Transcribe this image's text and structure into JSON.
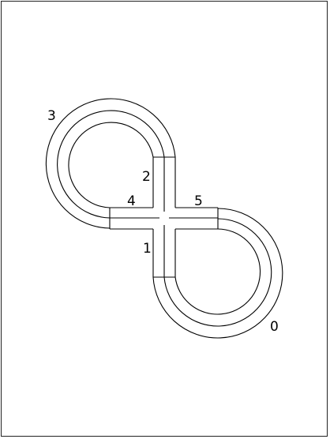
{
  "diagram": {
    "pieces": [
      {
        "id": "piece-0",
        "label": "0"
      },
      {
        "id": "piece-1",
        "label": "1"
      },
      {
        "id": "piece-2",
        "label": "2"
      },
      {
        "id": "piece-3",
        "label": "3"
      },
      {
        "id": "piece-4",
        "label": "4"
      },
      {
        "id": "piece-5",
        "label": "5"
      }
    ],
    "colors": {
      "background": "#ffffff",
      "stroke": "#000000",
      "frame": "#222222"
    }
  }
}
